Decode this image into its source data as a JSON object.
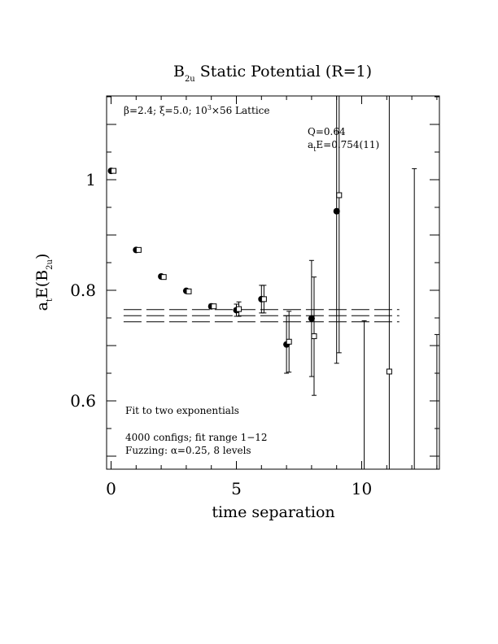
{
  "chart_data": {
    "type": "scatter",
    "title": {
      "main": "B",
      "sub": "2u",
      "rest": " Static Potential (R=1)"
    },
    "xlabel": "time separation",
    "ylabel": {
      "pre": "a",
      "sub1": "t",
      "mid": "E(B",
      "sub2": "2u",
      "post": ")"
    },
    "xlim": [
      0,
      13
    ],
    "ylim": [
      0.475,
      1.15
    ],
    "x_ticks": [
      0,
      5,
      10
    ],
    "x_tick_labels": [
      "0",
      "5",
      "10"
    ],
    "y_ticks": [
      0.6,
      0.8,
      1.0
    ],
    "y_tick_labels": [
      "0.6",
      "0.8",
      "1"
    ],
    "annotations": {
      "lattice": {
        "beta": "β",
        "text1": "=2.4; ",
        "xi": "ξ",
        "text2": "=5.0; 10",
        "sup": "3",
        "text3": "×56 Lattice"
      },
      "q": "Q=0.64",
      "ate": {
        "pre": "a",
        "sub": "t",
        "post": "E=0.754(11)"
      },
      "fit_method": "Fit to two exponentials",
      "configs": "4000 configs; fit range 1−12",
      "fuzzing": {
        "pre": "Fuzzing: ",
        "alpha": "α",
        "post": "=0.25, 8 levels"
      }
    },
    "fit": {
      "value": 0.754,
      "error": 0.011,
      "x_start": 0.5,
      "x_end": 11.5
    },
    "series": [
      {
        "marker": "filled-circle",
        "points": [
          {
            "x": 0,
            "y": 1.016,
            "err": 0.002
          },
          {
            "x": 1,
            "y": 0.873,
            "err": 0.002
          },
          {
            "x": 2,
            "y": 0.825,
            "err": 0.003
          },
          {
            "x": 3,
            "y": 0.799,
            "err": 0.003
          },
          {
            "x": 4,
            "y": 0.771,
            "err": 0.004
          },
          {
            "x": 5,
            "y": 0.764,
            "err": 0.011
          },
          {
            "x": 6,
            "y": 0.784,
            "err": 0.025
          },
          {
            "x": 7,
            "y": 0.702,
            "err": 0.052
          },
          {
            "x": 8,
            "y": 0.749,
            "err": 0.105
          },
          {
            "x": 9,
            "y": 0.943,
            "err": 0.275
          }
        ]
      },
      {
        "marker": "open-square",
        "points": [
          {
            "x": 0.1,
            "y": 1.016,
            "err": 0.002
          },
          {
            "x": 1.1,
            "y": 0.873,
            "err": 0.002
          },
          {
            "x": 2.1,
            "y": 0.824,
            "err": 0.002
          },
          {
            "x": 3.1,
            "y": 0.798,
            "err": 0.003
          },
          {
            "x": 4.1,
            "y": 0.771,
            "err": 0.004
          },
          {
            "x": 5.1,
            "y": 0.766,
            "err": 0.013
          },
          {
            "x": 6.1,
            "y": 0.784,
            "err": 0.025
          },
          {
            "x": 7.1,
            "y": 0.707,
            "err": 0.055
          },
          {
            "x": 8.1,
            "y": 0.717,
            "err": 0.107
          },
          {
            "x": 9.1,
            "y": 0.972,
            "err": 0.285
          },
          {
            "x": 10.1,
            "y": 0.475,
            "err": 0.27
          },
          {
            "x": 11.1,
            "y": 0.653,
            "err": 0.86
          },
          {
            "x": 12.1,
            "y": 0.475,
            "err": 0.545
          },
          {
            "x": 13.0,
            "y": 0.475,
            "err": 0.245
          }
        ]
      }
    ]
  }
}
